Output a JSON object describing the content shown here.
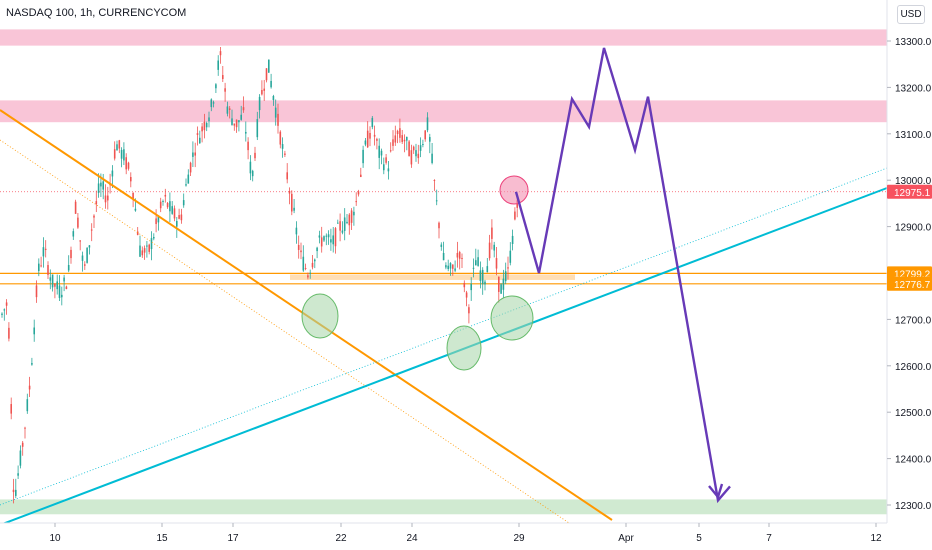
{
  "header": {
    "title": "NASDAQ 100, 1h, CURRENCYCOM",
    "currency_button": "USD"
  },
  "colors": {
    "up": "#26a69a",
    "down": "#ef5350",
    "resistance_zone": "#f8bbd0",
    "support_zone_orange": "#ffd8a8",
    "support_zone_green": "#c8e6c9",
    "trendline_orange": "#ff9800",
    "trendline_teal": "#00bcd4",
    "projection": "#673ab7",
    "circle_green": "#a5d6a7",
    "circle_pink": "#f48fb1",
    "price_label": "#f7525f",
    "level_label": "#ff9800"
  },
  "chart_data": {
    "type": "candlestick",
    "x_ticks": [
      "10",
      "15",
      "17",
      "22",
      "24",
      "29",
      "Apr",
      "5",
      "7",
      "12"
    ],
    "y_ticks": [
      "13300.0",
      "13200.0",
      "13100.0",
      "13000.0",
      "12900.0",
      "12800.0",
      "12700.0",
      "12600.0",
      "12500.0",
      "12400.0",
      "12300.0"
    ],
    "ylim": [
      12280,
      13340
    ],
    "zones": [
      {
        "type": "resistance",
        "from": 13290,
        "to": 13325
      },
      {
        "type": "resistance",
        "from": 13125,
        "to": 13172
      },
      {
        "type": "support",
        "from": 12785,
        "to": 12797
      },
      {
        "type": "support",
        "from": 12280,
        "to": 12312
      }
    ],
    "horizontal_levels": [
      12799.2,
      12776.7
    ],
    "current_price": 12975.1,
    "price_labels": [
      "12975.1",
      "12799.2",
      "12776.7"
    ],
    "projection_path": [
      12975,
      12800,
      13175,
      13115,
      13285,
      13065,
      13180,
      12310,
      12340
    ]
  }
}
